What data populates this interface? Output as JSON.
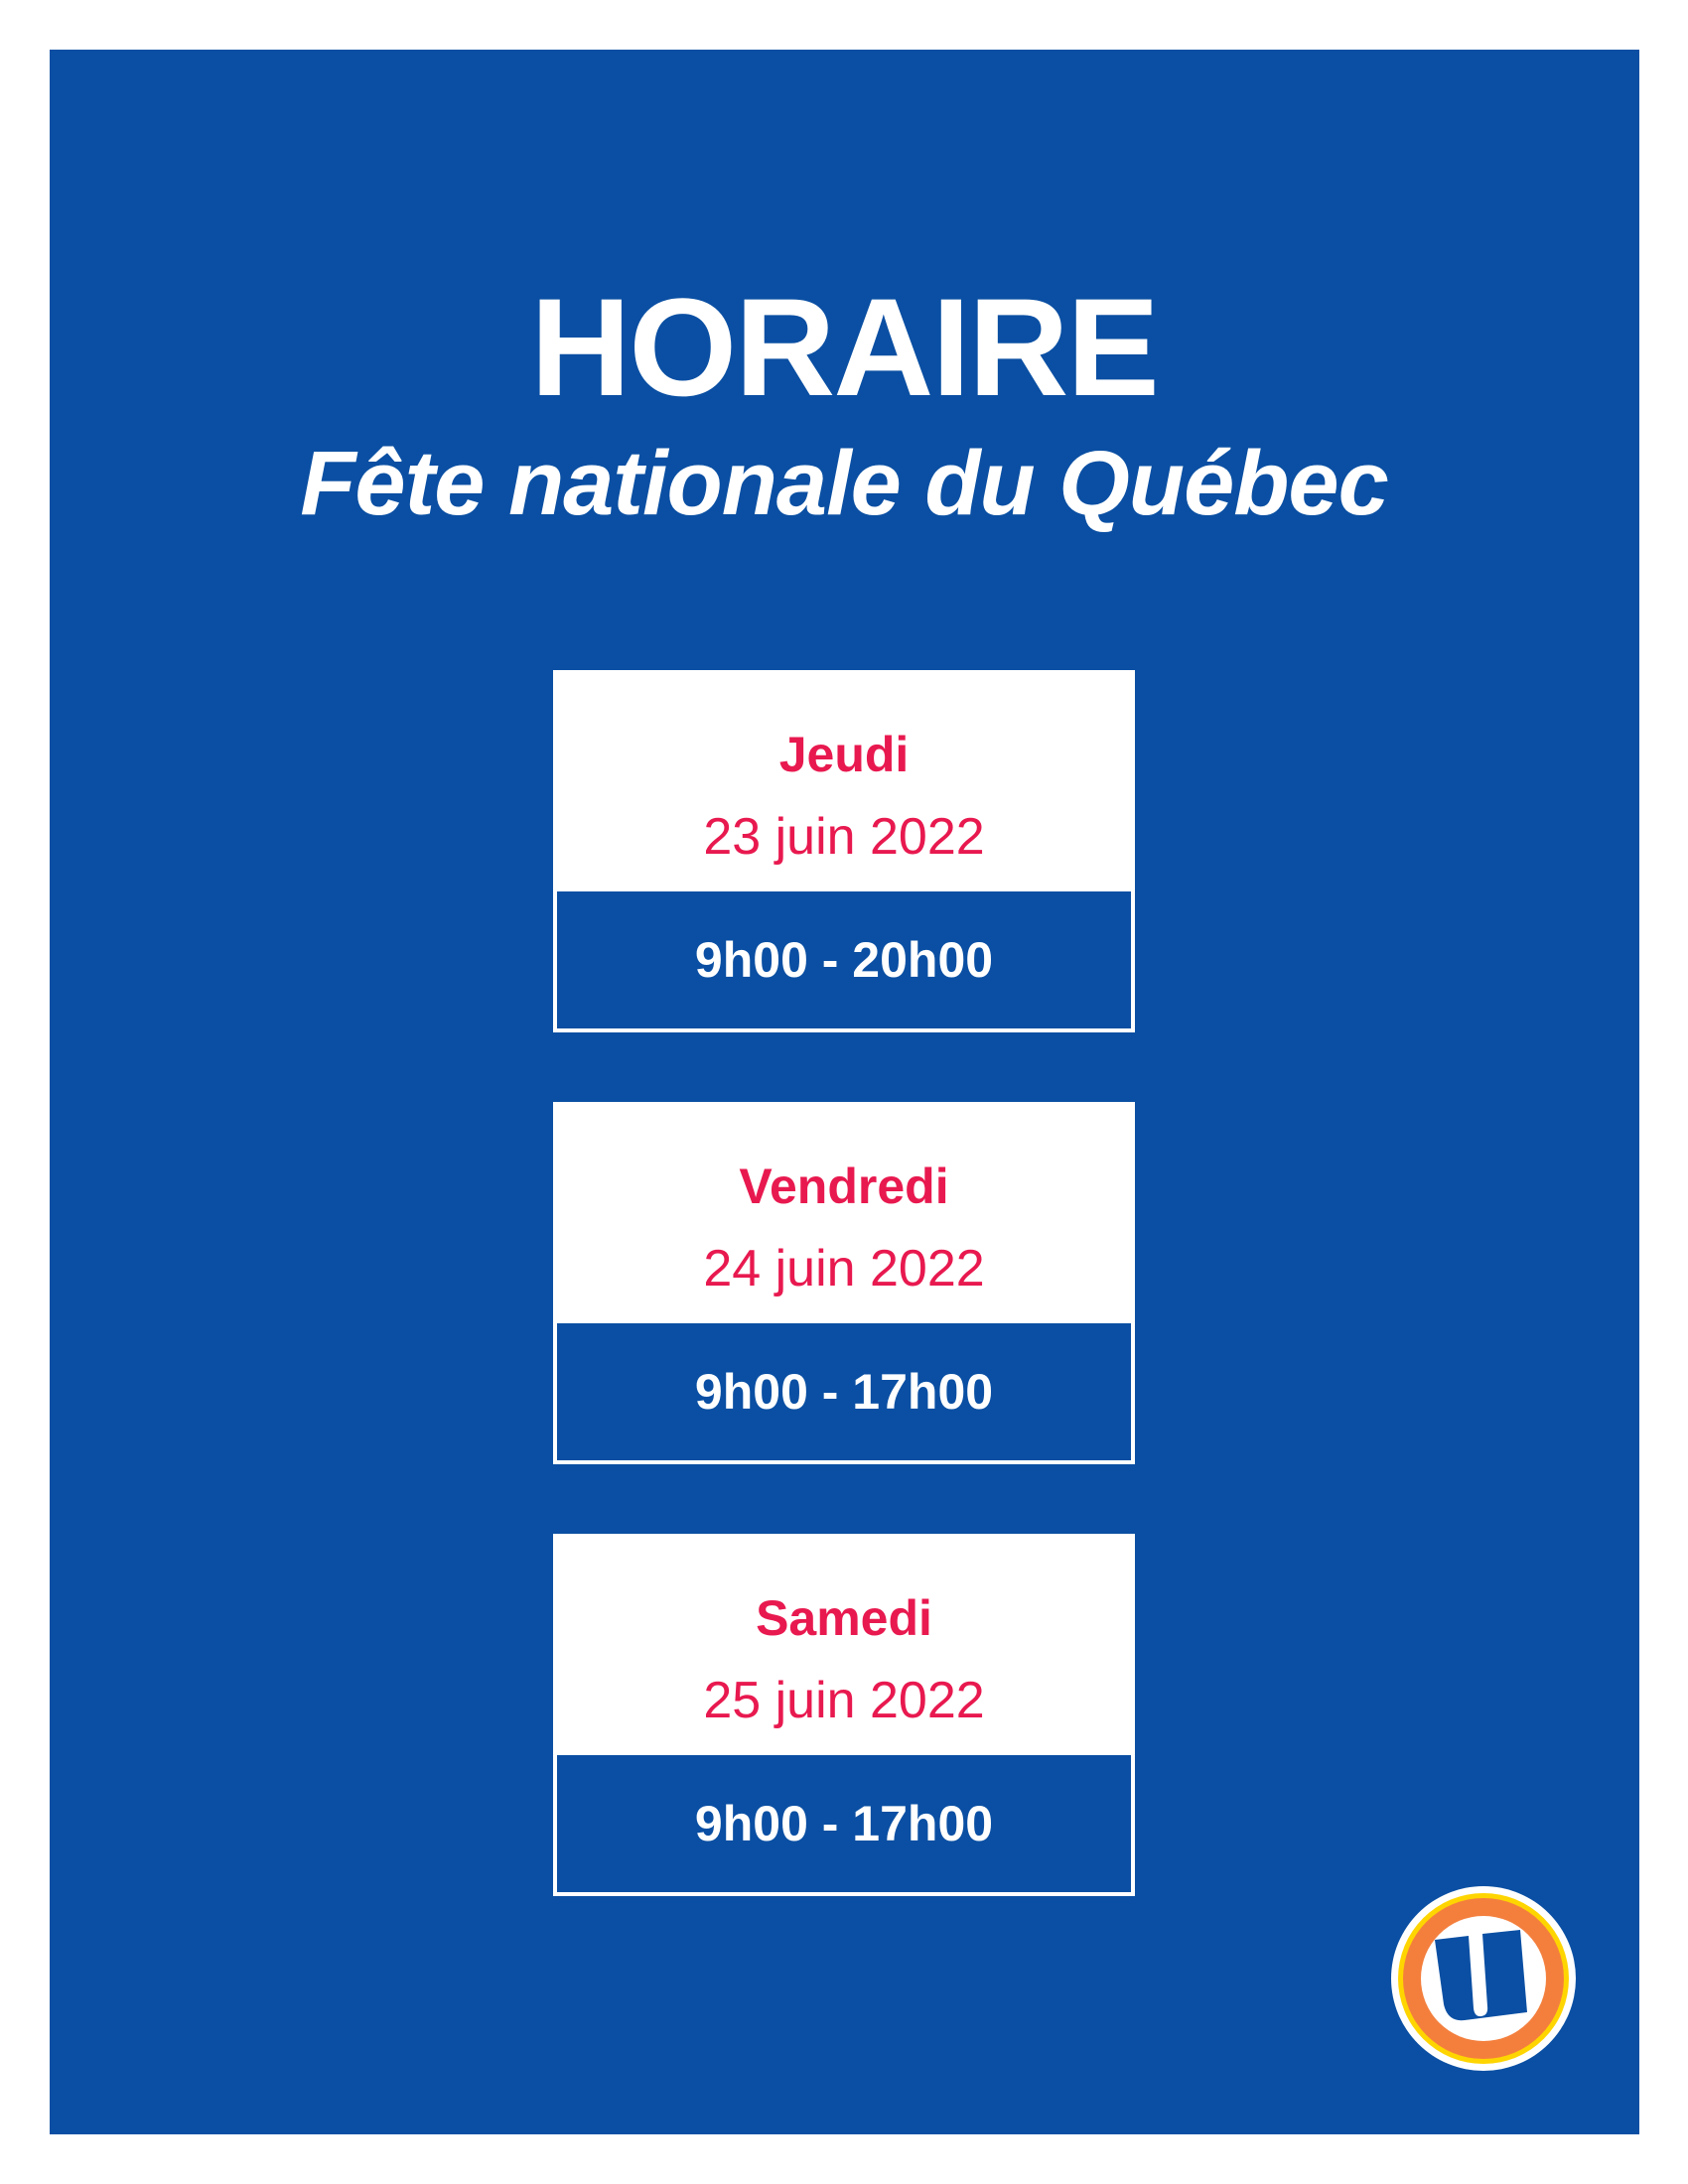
{
  "header": {
    "title": "HORAIRE",
    "subtitle": "Fête nationale du Québec"
  },
  "schedule": [
    {
      "day": "Jeudi",
      "date": "23 juin 2022",
      "hours": "9h00 - 20h00"
    },
    {
      "day": "Vendredi",
      "date": "24 juin 2022",
      "hours": "9h00 - 17h00"
    },
    {
      "day": "Samedi",
      "date": "25 juin 2022",
      "hours": "9h00 - 17h00"
    }
  ],
  "logo": {
    "icon": "u-logo-icon"
  },
  "colors": {
    "background": "#0a4fa3",
    "accent": "#e8194f",
    "logo_orange": "#f47f3d",
    "logo_yellow": "#ffd500"
  }
}
